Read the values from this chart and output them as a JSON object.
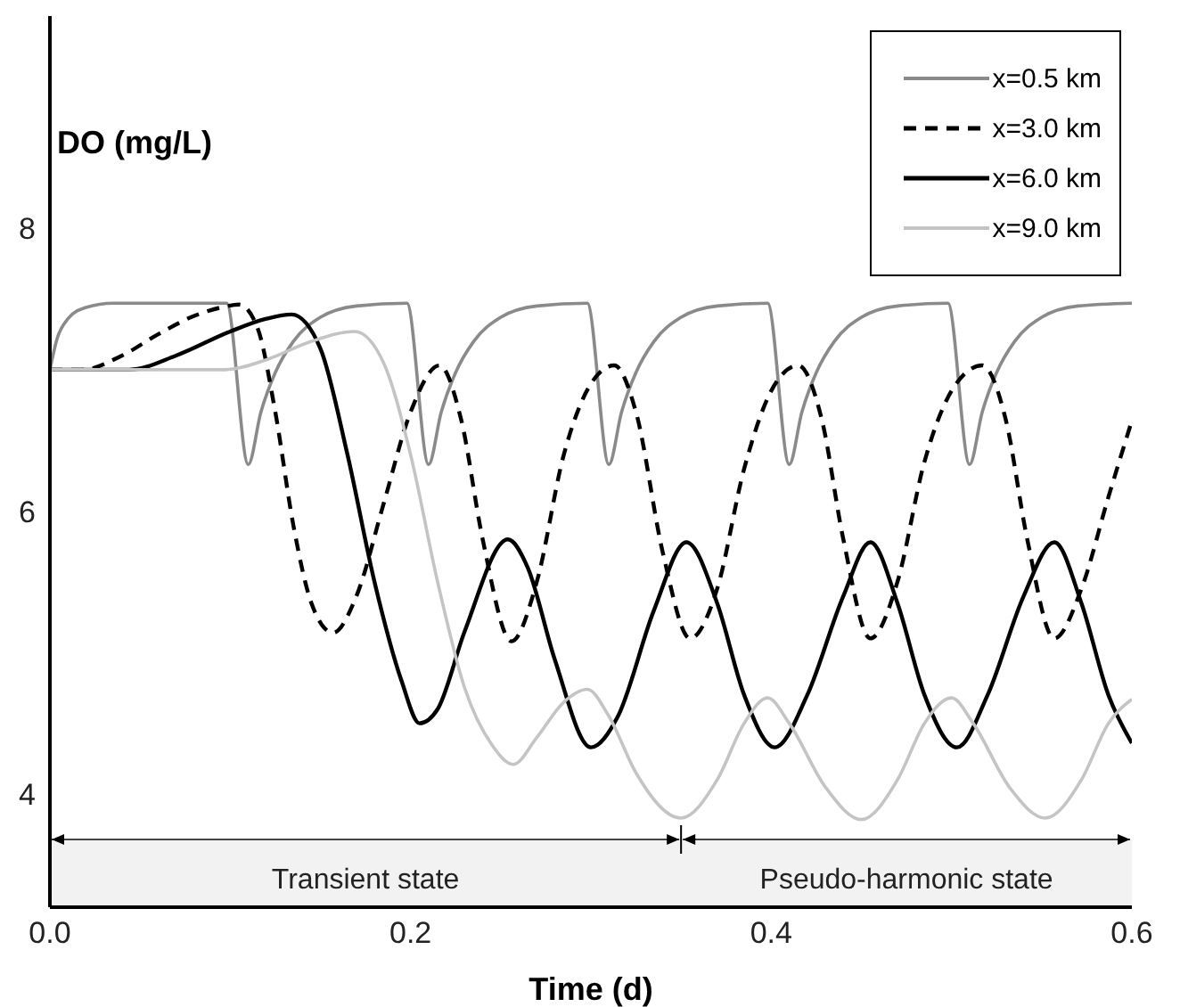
{
  "chart_data": {
    "type": "line",
    "xlabel": "Time (d)",
    "ylabel": "DO (mg/L)",
    "xlim": [
      0,
      0.6
    ],
    "xticks": [
      {
        "value": 0,
        "label": "0.0"
      },
      0.2,
      0.4,
      0.6
    ],
    "ylim": [
      3.2,
      9.5
    ],
    "yticks": [
      4,
      6,
      8
    ],
    "grid": false,
    "legend": "top right",
    "marker": "none",
    "bands": [
      {
        "axis": "x",
        "from": 0,
        "to": 0.35,
        "label": "Transient state"
      },
      {
        "axis": "x",
        "from": 0.35,
        "to": 0.6,
        "label": "Pseudo-harmonic state"
      }
    ],
    "series": [
      {
        "name": "x=0.5 km",
        "color": "#8a8a8a",
        "line_style": "solid",
        "x": [
          0,
          0.004,
          0.01,
          0.02,
          0.035,
          0.098,
          0.11,
          0.117,
          0.125,
          0.135,
          0.15,
          0.17,
          0.198,
          0.21,
          0.217,
          0.225,
          0.235,
          0.25,
          0.27,
          0.298,
          0.31,
          0.317,
          0.325,
          0.335,
          0.35,
          0.37,
          0.398,
          0.41,
          0.417,
          0.425,
          0.435,
          0.45,
          0.47,
          0.498,
          0.51,
          0.517,
          0.525,
          0.535,
          0.55,
          0.57,
          0.6
        ],
        "values": [
          7.0,
          7.22,
          7.36,
          7.44,
          7.47,
          7.47,
          6.33,
          6.7,
          6.98,
          7.2,
          7.37,
          7.45,
          7.47,
          6.33,
          6.7,
          6.98,
          7.2,
          7.37,
          7.45,
          7.47,
          6.33,
          6.7,
          6.98,
          7.2,
          7.37,
          7.45,
          7.47,
          6.33,
          6.7,
          6.98,
          7.2,
          7.37,
          7.45,
          7.47,
          6.33,
          6.7,
          6.98,
          7.2,
          7.37,
          7.45,
          7.47
        ]
      },
      {
        "name": "x=3.0 km",
        "color": "#000000",
        "line_style": "dashed",
        "x": [
          0,
          0.018,
          0.04,
          0.06,
          0.08,
          0.095,
          0.105,
          0.115,
          0.125,
          0.135,
          0.145,
          0.157,
          0.17,
          0.185,
          0.2,
          0.216,
          0.228,
          0.24,
          0.256,
          0.27,
          0.285,
          0.3,
          0.313,
          0.325,
          0.34,
          0.355,
          0.37,
          0.385,
          0.4,
          0.415,
          0.428,
          0.44,
          0.455,
          0.47,
          0.485,
          0.5,
          0.517,
          0.53,
          0.542,
          0.557,
          0.572,
          0.587,
          0.6
        ],
        "values": [
          7.0,
          7.0,
          7.1,
          7.25,
          7.38,
          7.44,
          7.46,
          7.3,
          6.7,
          5.9,
          5.35,
          5.14,
          5.4,
          6.05,
          6.7,
          7.03,
          6.65,
          5.8,
          5.08,
          5.5,
          6.4,
          6.9,
          7.03,
          6.7,
          5.7,
          5.1,
          5.45,
          6.3,
          6.85,
          7.03,
          6.65,
          5.8,
          5.1,
          5.5,
          6.35,
          6.85,
          7.03,
          6.65,
          5.8,
          5.1,
          5.45,
          6.1,
          6.64
        ]
      },
      {
        "name": "x=6.0 km",
        "color": "#000000",
        "line_style": "solid",
        "x": [
          0,
          0.044,
          0.07,
          0.1,
          0.12,
          0.134,
          0.15,
          0.165,
          0.18,
          0.195,
          0.205,
          0.215,
          0.23,
          0.254,
          0.265,
          0.28,
          0.3,
          0.315,
          0.335,
          0.353,
          0.37,
          0.385,
          0.402,
          0.42,
          0.44,
          0.455,
          0.47,
          0.485,
          0.503,
          0.52,
          0.54,
          0.557,
          0.572,
          0.587,
          0.6
        ],
        "values": [
          7.0,
          7.0,
          7.1,
          7.27,
          7.36,
          7.39,
          7.15,
          6.4,
          5.5,
          4.8,
          4.5,
          4.6,
          5.15,
          5.8,
          5.6,
          4.95,
          4.33,
          4.55,
          5.3,
          5.78,
          5.35,
          4.7,
          4.33,
          4.7,
          5.4,
          5.78,
          5.35,
          4.7,
          4.33,
          4.7,
          5.4,
          5.78,
          5.35,
          4.7,
          4.36
        ]
      },
      {
        "name": "x=9.0 km",
        "color": "#c4c4c4",
        "line_style": "solid",
        "x": [
          0,
          0.097,
          0.12,
          0.145,
          0.169,
          0.185,
          0.2,
          0.215,
          0.23,
          0.245,
          0.257,
          0.27,
          0.285,
          0.298,
          0.31,
          0.325,
          0.35,
          0.37,
          0.385,
          0.398,
          0.41,
          0.43,
          0.45,
          0.47,
          0.485,
          0.5,
          0.512,
          0.532,
          0.552,
          0.572,
          0.587,
          0.6
        ],
        "values": [
          7.0,
          7.0,
          7.07,
          7.2,
          7.27,
          7.05,
          6.4,
          5.5,
          4.75,
          4.35,
          4.21,
          4.4,
          4.65,
          4.74,
          4.55,
          4.15,
          3.83,
          4.1,
          4.5,
          4.68,
          4.5,
          4.05,
          3.82,
          4.1,
          4.5,
          4.68,
          4.5,
          4.05,
          3.83,
          4.1,
          4.5,
          4.67
        ]
      }
    ]
  }
}
